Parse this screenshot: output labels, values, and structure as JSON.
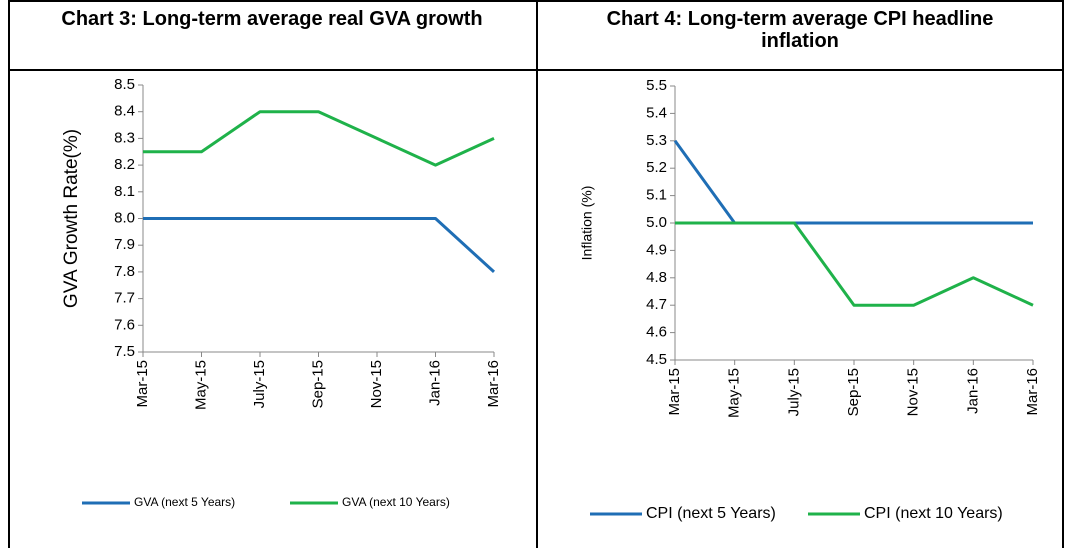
{
  "chart_data": [
    {
      "type": "line",
      "title": "Chart 3: Long-term average real GVA growth",
      "y_label": "GVA Growth Rate(%)",
      "categories": [
        "Mar-15",
        "May-15",
        "July-15",
        "Sep-15",
        "Nov-15",
        "Jan-16",
        "Mar-16"
      ],
      "series": [
        {
          "name": "GVA (next 5 Years)",
          "color": "#1f6eb5",
          "values": [
            8.0,
            8.0,
            8.0,
            8.0,
            8.0,
            8.0,
            7.8
          ]
        },
        {
          "name": "GVA (next 10 Years)",
          "color": "#1fb24a",
          "values": [
            8.25,
            8.25,
            8.4,
            8.4,
            8.3,
            8.2,
            8.3
          ]
        }
      ],
      "ylim": [
        7.5,
        8.5
      ],
      "yticks": [
        7.5,
        7.6,
        7.7,
        7.8,
        7.9,
        {
          "value": 8,
          "label": "8.0"
        },
        8.1,
        8.2,
        8.3,
        8.4,
        8.5
      ],
      "grid": false,
      "legend": "bottom"
    },
    {
      "type": "line",
      "title": "Chart 4: Long-term average CPI headline inflation",
      "y_label": "Inflation (%)",
      "categories": [
        "Mar-15",
        "May-15",
        "July-15",
        "Sep-15",
        "Nov-15",
        "Jan-16",
        "Mar-16"
      ],
      "series": [
        {
          "name": "CPI (next 5 Years)",
          "color": "#1f6eb5",
          "values": [
            5.3,
            5.0,
            5.0,
            5.0,
            5.0,
            5.0,
            5.0
          ]
        },
        {
          "name": "CPI (next 10 Years)",
          "color": "#1fb24a",
          "values": [
            5.0,
            5.0,
            5.0,
            4.7,
            4.7,
            4.8,
            4.7
          ]
        }
      ],
      "ylim": [
        4.5,
        5.5
      ],
      "yticks": [
        4.5,
        4.6,
        4.7,
        4.8,
        4.9,
        {
          "value": 5,
          "label": "5.0"
        },
        5.1,
        5.2,
        5.3,
        5.4,
        5.5
      ],
      "grid": false,
      "legend": "bottom"
    }
  ]
}
